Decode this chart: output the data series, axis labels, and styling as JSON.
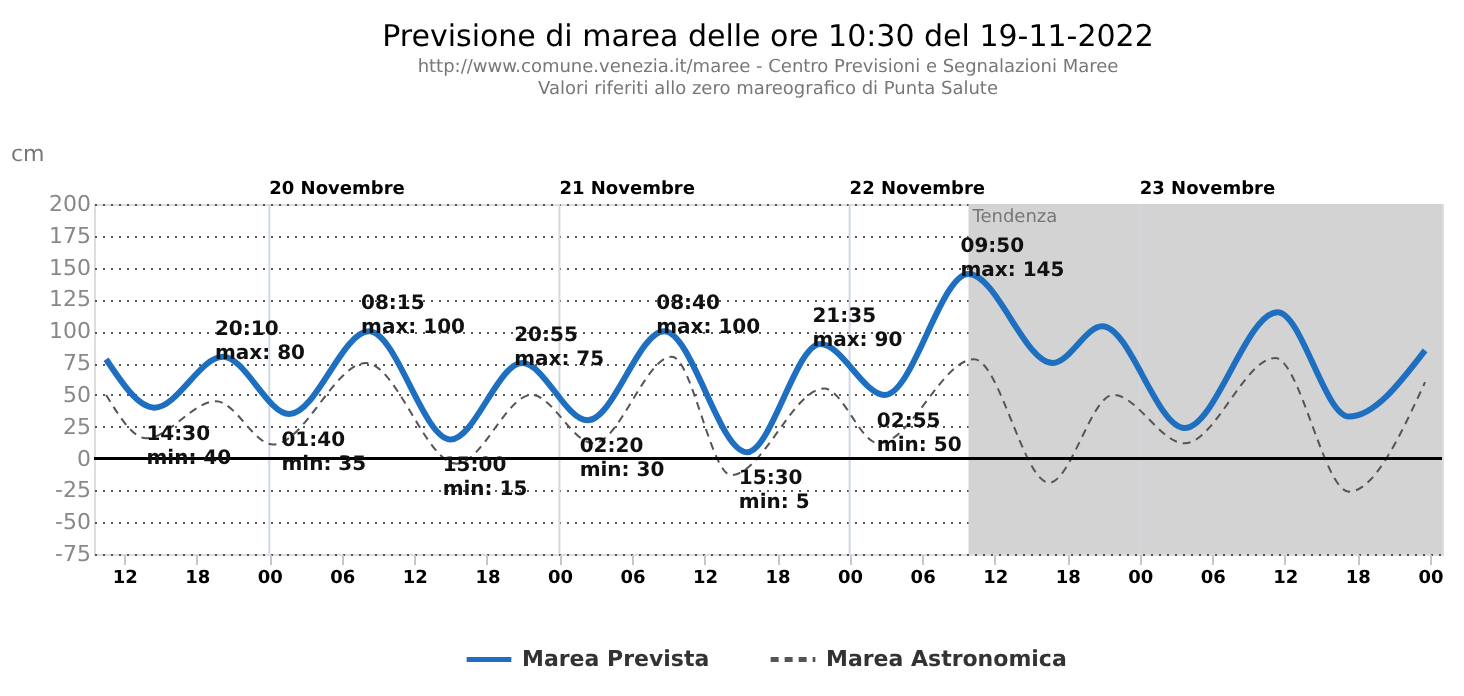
{
  "chart_data": {
    "type": "line",
    "title": "Previsione di marea delle ore 10:30 del 19-11-2022",
    "subtitle": [
      "http://www.comune.venezia.it/maree - Centro Previsioni e Segnalazioni Maree",
      "Valori riferiti allo zero mareografico di Punta Salute"
    ],
    "ylabel": "cm",
    "xlim": [
      "2022-11-19T09:30",
      "2022-11-24T01:00"
    ],
    "ylim": [
      -75,
      200
    ],
    "xticks": [
      {
        "value": "2022-11-19T12:00",
        "label": "12"
      },
      {
        "value": "2022-11-19T18:00",
        "label": "18"
      },
      {
        "value": "2022-11-20T00:00",
        "label": "00"
      },
      {
        "value": "2022-11-20T06:00",
        "label": "06"
      },
      {
        "value": "2022-11-20T12:00",
        "label": "12"
      },
      {
        "value": "2022-11-20T18:00",
        "label": "18"
      },
      {
        "value": "2022-11-21T00:00",
        "label": "00"
      },
      {
        "value": "2022-11-21T06:00",
        "label": "06"
      },
      {
        "value": "2022-11-21T12:00",
        "label": "12"
      },
      {
        "value": "2022-11-21T18:00",
        "label": "18"
      },
      {
        "value": "2022-11-22T00:00",
        "label": "00"
      },
      {
        "value": "2022-11-22T06:00",
        "label": "06"
      },
      {
        "value": "2022-11-22T12:00",
        "label": "12"
      },
      {
        "value": "2022-11-22T18:00",
        "label": "18"
      },
      {
        "value": "2022-11-23T00:00",
        "label": "00"
      },
      {
        "value": "2022-11-23T06:00",
        "label": "06"
      },
      {
        "value": "2022-11-23T12:00",
        "label": "12"
      },
      {
        "value": "2022-11-23T18:00",
        "label": "18"
      },
      {
        "value": "2022-11-24T00:00",
        "label": "00"
      }
    ],
    "yticks": [
      -75,
      -50,
      -25,
      0,
      25,
      50,
      75,
      100,
      125,
      150,
      175,
      200
    ],
    "grid": "y",
    "legend": "bottom",
    "marker": "none",
    "series": [
      {
        "name": "Marea Prevista",
        "color": "#1f6fc0",
        "line_style": "solid",
        "x": [
          "2022-11-19T10:30",
          "2022-11-19T14:30",
          "2022-11-19T20:10",
          "2022-11-20T01:40",
          "2022-11-20T08:15",
          "2022-11-20T15:00",
          "2022-11-20T20:55",
          "2022-11-21T02:20",
          "2022-11-21T08:40",
          "2022-11-21T15:30",
          "2022-11-21T21:35",
          "2022-11-22T02:55",
          "2022-11-22T09:50",
          "2022-11-22T16:48",
          "2022-11-22T20:54",
          "2022-11-23T03:42",
          "2022-11-23T11:24",
          "2022-11-23T17:18",
          "2022-11-23T23:36"
        ],
        "values": [
          78,
          40,
          80,
          35,
          100,
          15,
          75,
          30,
          100,
          5,
          90,
          50,
          145,
          75,
          104,
          24,
          115,
          33,
          85
        ]
      },
      {
        "name": "Marea Astronomica",
        "color": "#555555",
        "line_style": "dashed",
        "x": [
          "2022-11-19T10:30",
          "2022-11-19T13:48",
          "2022-11-19T19:36",
          "2022-11-20T00:18",
          "2022-11-20T08:00",
          "2022-11-20T15:30",
          "2022-11-20T21:42",
          "2022-11-21T02:48",
          "2022-11-21T09:18",
          "2022-11-21T14:12",
          "2022-11-21T21:54",
          "2022-11-22T02:24",
          "2022-11-22T10:18",
          "2022-11-22T16:30",
          "2022-11-22T21:48",
          "2022-11-23T03:42",
          "2022-11-23T11:12",
          "2022-11-23T17:18",
          "2022-11-23T23:36"
        ],
        "values": [
          50,
          16,
          45,
          11,
          75,
          -4,
          50,
          12,
          80,
          -13,
          55,
          12,
          78,
          -19,
          50,
          12,
          79,
          -26,
          60
        ]
      }
    ],
    "ref_lines": [
      {
        "axis": "y",
        "value": 0,
        "color": "#000000"
      },
      {
        "axis": "x",
        "value": "2022-11-20T00:00",
        "label": "20 Novembre",
        "color": "#d0d8e0"
      },
      {
        "axis": "x",
        "value": "2022-11-21T00:00",
        "label": "21 Novembre",
        "color": "#d0d8e0"
      },
      {
        "axis": "x",
        "value": "2022-11-22T00:00",
        "label": "22 Novembre",
        "color": "#d0d8e0"
      },
      {
        "axis": "x",
        "value": "2022-11-23T00:00",
        "label": "23 Novembre",
        "color": "#d0d8e0"
      }
    ],
    "bands": [
      {
        "axis": "x",
        "from": "2022-11-22T09:50",
        "to": "2022-11-24T01:00",
        "label": "Tendenza",
        "color": "#d3d3d3"
      }
    ],
    "annotations": [
      {
        "text": "14:30\nmin: 40",
        "x": "2022-11-19T14:30",
        "y": 40
      },
      {
        "text": "20:10\nmax: 80",
        "x": "2022-11-19T20:10",
        "y": 80
      },
      {
        "text": "01:40\nmin: 35",
        "x": "2022-11-20T01:40",
        "y": 35
      },
      {
        "text": "08:15\nmax: 100",
        "x": "2022-11-20T08:15",
        "y": 100
      },
      {
        "text": "15:00\nmin: 15",
        "x": "2022-11-20T15:00",
        "y": 15
      },
      {
        "text": "20:55\nmax: 75",
        "x": "2022-11-20T20:55",
        "y": 75
      },
      {
        "text": "02:20\nmin: 30",
        "x": "2022-11-21T02:20",
        "y": 30
      },
      {
        "text": "08:40\nmax: 100",
        "x": "2022-11-21T08:40",
        "y": 100
      },
      {
        "text": "15:30\nmin: 5",
        "x": "2022-11-21T15:30",
        "y": 5
      },
      {
        "text": "21:35\nmax: 90",
        "x": "2022-11-21T21:35",
        "y": 90
      },
      {
        "text": "02:55\nmin: 50",
        "x": "2022-11-22T02:55",
        "y": 50
      },
      {
        "text": "09:50\nmax: 145",
        "x": "2022-11-22T09:50",
        "y": 145
      }
    ]
  }
}
